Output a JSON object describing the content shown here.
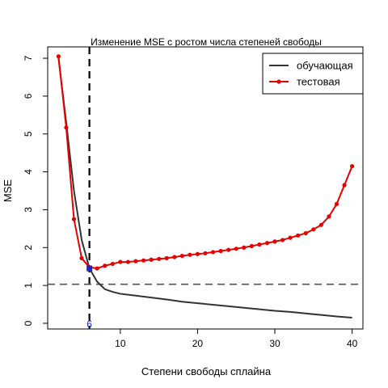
{
  "chart_data": {
    "type": "line",
    "title": "Изменение MSE с ростом числа степеней свободы",
    "xlabel": "Степени свободы сплайна",
    "ylabel": "MSE",
    "xlim": [
      0.6,
      41.4
    ],
    "ylim": [
      -0.15,
      7.3
    ],
    "x_ticks": [
      10,
      20,
      30,
      40
    ],
    "y_ticks": [
      0,
      1,
      2,
      3,
      4,
      5,
      6,
      7
    ],
    "legend_position": "top-right",
    "series": [
      {
        "name": "обучающая",
        "color": "#333333",
        "marker": "none",
        "x": [
          2,
          3,
          4,
          5,
          6,
          7,
          8,
          9,
          10,
          12,
          14,
          16,
          18,
          20,
          22,
          24,
          26,
          28,
          30,
          32,
          34,
          36,
          38,
          40
        ],
        "y": [
          7.0,
          5.3,
          3.5,
          2.2,
          1.45,
          1.1,
          0.9,
          0.83,
          0.78,
          0.73,
          0.68,
          0.63,
          0.57,
          0.53,
          0.49,
          0.45,
          0.41,
          0.37,
          0.33,
          0.3,
          0.26,
          0.22,
          0.18,
          0.15
        ]
      },
      {
        "name": "тестовая",
        "color": "#e60000",
        "marker": "circle",
        "x": [
          2,
          3,
          4,
          5,
          6,
          7,
          8,
          9,
          10,
          11,
          12,
          13,
          14,
          15,
          16,
          17,
          18,
          19,
          20,
          21,
          22,
          23,
          24,
          25,
          26,
          27,
          28,
          29,
          30,
          31,
          32,
          33,
          34,
          35,
          36,
          37,
          38,
          39,
          40
        ],
        "y": [
          7.05,
          5.17,
          2.75,
          1.72,
          1.48,
          1.45,
          1.52,
          1.57,
          1.62,
          1.62,
          1.64,
          1.66,
          1.68,
          1.7,
          1.72,
          1.75,
          1.78,
          1.81,
          1.83,
          1.85,
          1.88,
          1.91,
          1.94,
          1.97,
          2.0,
          2.04,
          2.08,
          2.12,
          2.16,
          2.2,
          2.26,
          2.32,
          2.38,
          2.48,
          2.6,
          2.82,
          3.15,
          3.65,
          4.15
        ]
      }
    ],
    "highlight_point": {
      "x": 6,
      "y": 1.45,
      "color": "#2222cc",
      "label": "6"
    },
    "reference_lines": [
      {
        "orientation": "vertical",
        "x": 6,
        "style": "dashed",
        "color": "#000000"
      },
      {
        "orientation": "horizontal",
        "y": 1.03,
        "style": "dashed",
        "color": "#555555"
      }
    ]
  }
}
